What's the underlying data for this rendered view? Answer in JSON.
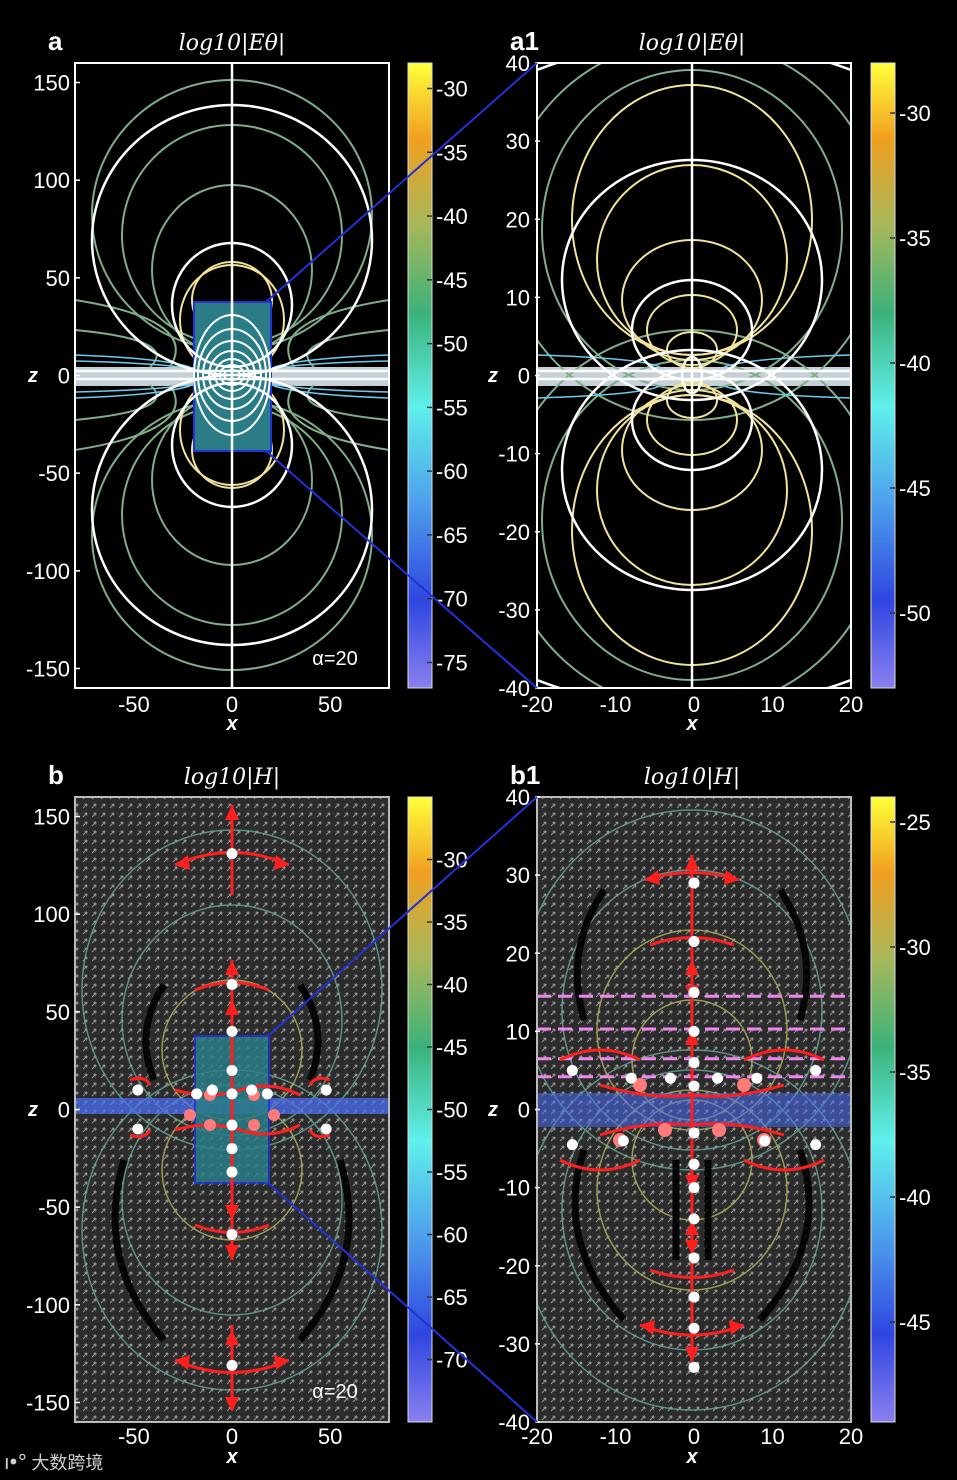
{
  "watermark": {
    "logo_glyph": "ı•°",
    "text": "大数跨境"
  },
  "colors": {
    "contour_white": "#ffffff",
    "contour_yellow": "#f2e39a",
    "contour_green": "#7fae8a",
    "contour_blue": "#6fc9ec",
    "zoom_line": "#2232d8",
    "region_fill": "#2a7d86",
    "arrow_red": "#ff1f1f",
    "vector_grey": "#9a9a9a",
    "dashed_magenta": "#ee86ee",
    "colormap": [
      "#8a80f0",
      "#2f46e0",
      "#4ea1ec",
      "#5ff0ec",
      "#3bb27a",
      "#a7b75a",
      "#f0a020",
      "#ffff3a"
    ]
  },
  "chart_data": [
    {
      "panel_label": "a",
      "type": "heatmap",
      "title": "log10|Eθ|",
      "xlabel": "x",
      "ylabel": "z",
      "xlim": [
        -80,
        80
      ],
      "ylim": [
        -160,
        160
      ],
      "xticks": [
        "-50",
        "0",
        "50"
      ],
      "yticks": [
        "150",
        "100",
        "50",
        "0",
        "-50",
        "-100",
        "-150"
      ],
      "annotation": "α=20",
      "colorbar": {
        "min": -77,
        "max": -28,
        "ticks": [
          "-30",
          "-35",
          "-40",
          "-45",
          "-50",
          "-55",
          "-60",
          "-65",
          "-70",
          "-75"
        ]
      },
      "zoom_region": {
        "x": [
          -20,
          20
        ],
        "z": [
          -40,
          40
        ]
      }
    },
    {
      "panel_label": "a1",
      "type": "heatmap",
      "title": "log10|Eθ|",
      "xlabel": "x",
      "ylabel": "z",
      "xlim": [
        -20,
        20
      ],
      "ylim": [
        -40,
        40
      ],
      "xticks": [
        "-20",
        "-10",
        "0",
        "10",
        "20"
      ],
      "yticks": [
        "40",
        "30",
        "20",
        "10",
        "0",
        "-10",
        "-20",
        "-30",
        "-40"
      ],
      "colorbar": {
        "min": -53,
        "max": -28,
        "ticks": [
          "-30",
          "-35",
          "-40",
          "-45",
          "-50"
        ]
      }
    },
    {
      "panel_label": "b",
      "type": "heatmap",
      "title": "log10|H|",
      "xlabel": "x",
      "ylabel": "z",
      "xlim": [
        -80,
        80
      ],
      "ylim": [
        -160,
        160
      ],
      "xticks": [
        "-50",
        "0",
        "50"
      ],
      "yticks": [
        "150",
        "100",
        "50",
        "0",
        "-50",
        "-100",
        "-150"
      ],
      "annotation": "α=20",
      "colorbar": {
        "min": -75,
        "max": -25,
        "ticks": [
          "-30",
          "-35",
          "-40",
          "-45",
          "-50",
          "-55",
          "-60",
          "-65",
          "-70"
        ]
      },
      "zoom_region": {
        "x": [
          -20,
          20
        ],
        "z": [
          -40,
          40
        ]
      },
      "null_points": [
        [
          0,
          131
        ],
        [
          0,
          64
        ],
        [
          0,
          40
        ],
        [
          0,
          20
        ],
        [
          0,
          8
        ],
        [
          -10,
          10
        ],
        [
          10,
          10
        ],
        [
          -18,
          8
        ],
        [
          18,
          8
        ],
        [
          -48,
          10
        ],
        [
          48,
          10
        ],
        [
          -48,
          -10
        ],
        [
          48,
          -10
        ],
        [
          0,
          -8
        ],
        [
          0,
          -20
        ],
        [
          0,
          -32
        ],
        [
          0,
          -64
        ],
        [
          0,
          -131
        ]
      ]
    },
    {
      "panel_label": "b1",
      "type": "heatmap",
      "title": "log10|H|",
      "xlabel": "x",
      "ylabel": "z",
      "xlim": [
        -20,
        20
      ],
      "ylim": [
        -40,
        40
      ],
      "xticks": [
        "-20",
        "-10",
        "0",
        "10",
        "20"
      ],
      "yticks": [
        "40",
        "30",
        "20",
        "10",
        "0",
        "-10",
        "-20",
        "-30",
        "-40"
      ],
      "colorbar": {
        "min": -49,
        "max": -24,
        "ticks": [
          "-25",
          "-30",
          "-35",
          "-40",
          "-45"
        ]
      },
      "dashed_lines_z": [
        14.5,
        10.3,
        6.5,
        4.2
      ],
      "null_points": [
        [
          0,
          29
        ],
        [
          0,
          21.5
        ],
        [
          0,
          15
        ],
        [
          0,
          10
        ],
        [
          0,
          6
        ],
        [
          0,
          3
        ],
        [
          -3,
          4
        ],
        [
          3,
          4
        ],
        [
          -8,
          4
        ],
        [
          8,
          4
        ],
        [
          -15.5,
          5
        ],
        [
          15.5,
          5
        ],
        [
          -15.5,
          -4.5
        ],
        [
          15.5,
          -4.5
        ],
        [
          -9,
          -4
        ],
        [
          9,
          -4
        ],
        [
          0,
          -3
        ],
        [
          0,
          -7
        ],
        [
          0,
          -10
        ],
        [
          0,
          -14
        ],
        [
          0,
          -19
        ],
        [
          0,
          -24
        ],
        [
          0,
          -28
        ],
        [
          0,
          -33
        ]
      ]
    }
  ]
}
